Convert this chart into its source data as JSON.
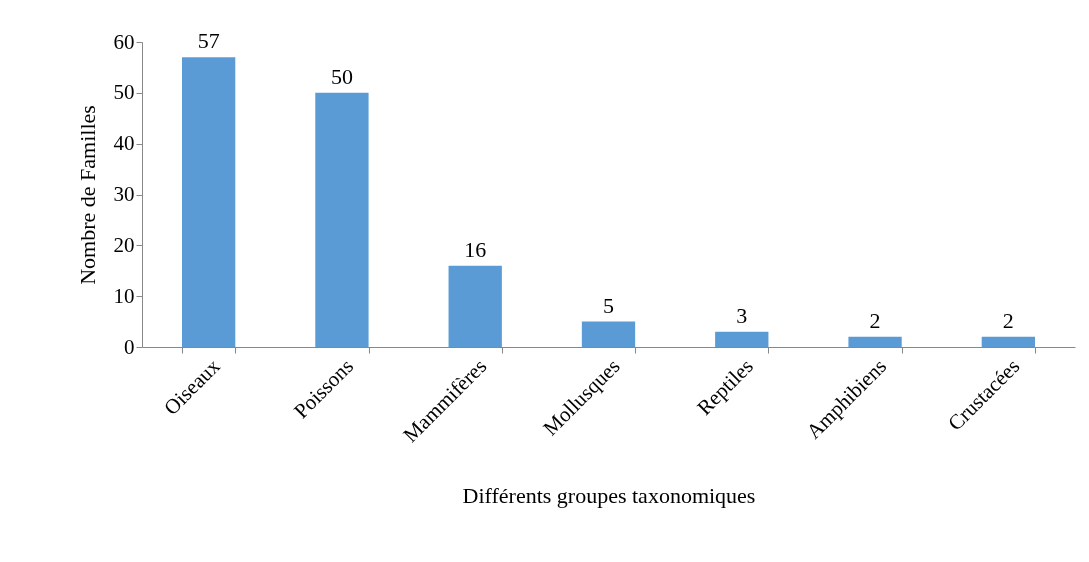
{
  "chart_data": {
    "type": "bar",
    "xlabel": "Différents groupes taxonomiques",
    "ylabel": "Nombre  de Familles",
    "categories": [
      "Oiseaux",
      "Poissons",
      "Mammifères",
      "Mollusques",
      "Reptiles",
      "Amphibiens",
      "Crustacées"
    ],
    "values": [
      57,
      50,
      16,
      5,
      3,
      2,
      2
    ],
    "color": "#5b9bd5",
    "ylim": [
      0,
      60
    ],
    "yticks": [
      0,
      10,
      20,
      30,
      40,
      50,
      60
    ],
    "grid": false,
    "data_labels": true
  }
}
